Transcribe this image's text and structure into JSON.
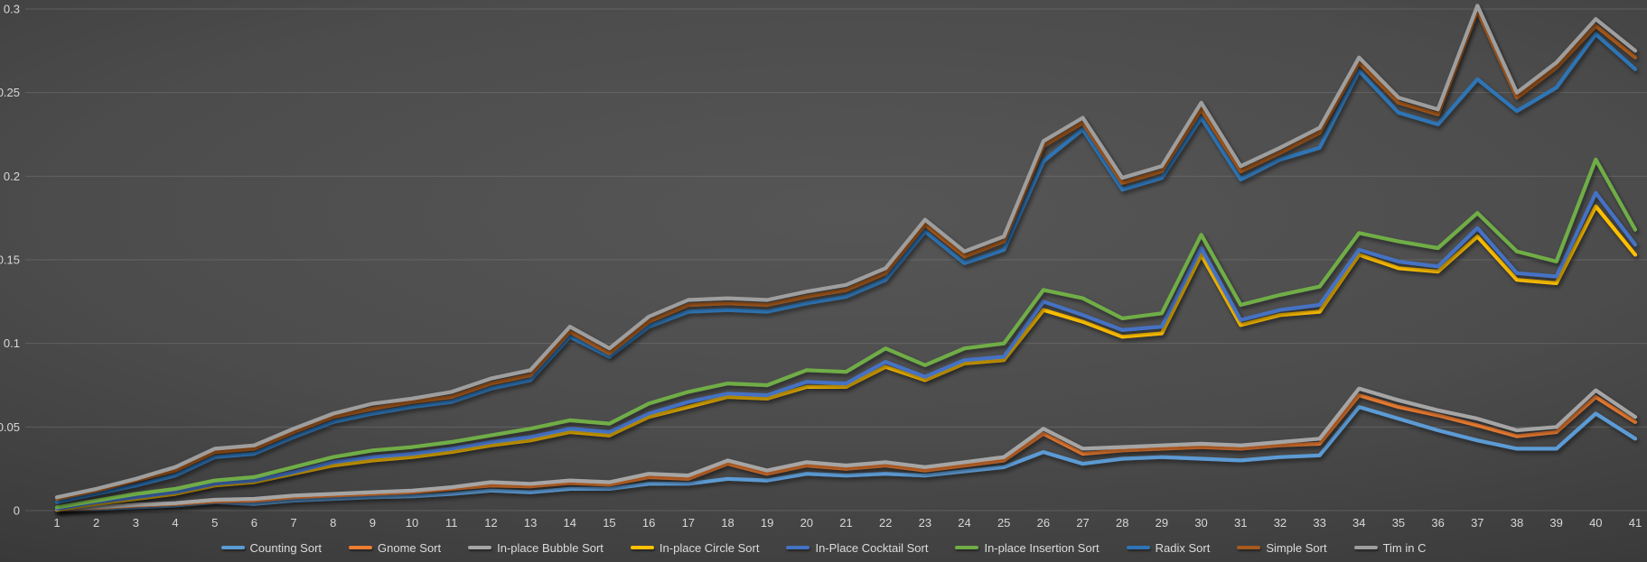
{
  "theme": {
    "background_center": "#565656",
    "background_edge": "#2d2d2d",
    "gridline_color": "#8a8a8a",
    "axis_text_color": "#d8d8d8",
    "legend_text_color": "#dcdcdc"
  },
  "chart_data": {
    "type": "line",
    "title": "",
    "xlabel": "",
    "ylabel": "",
    "grid": true,
    "legend_position": "bottom",
    "x": [
      1,
      2,
      3,
      4,
      5,
      6,
      7,
      8,
      9,
      10,
      11,
      12,
      13,
      14,
      15,
      16,
      17,
      18,
      19,
      20,
      21,
      22,
      23,
      24,
      25,
      26,
      27,
      28,
      29,
      30,
      31,
      32,
      33,
      34,
      35,
      36,
      37,
      38,
      39,
      40,
      41
    ],
    "y_axis": {
      "min": 0,
      "max": 0.3,
      "step": 0.05,
      "tick_labels": [
        "0",
        "0.05",
        "0.1",
        "0.15",
        "0.2",
        "0.25",
        "0.3"
      ]
    },
    "series": [
      {
        "name": "Counting Sort",
        "color": "#5B9BD5",
        "values": [
          0.0003,
          0.001,
          0.002,
          0.003,
          0.005,
          0.004,
          0.006,
          0.007,
          0.008,
          0.0085,
          0.01,
          0.012,
          0.011,
          0.013,
          0.013,
          0.016,
          0.016,
          0.019,
          0.018,
          0.022,
          0.021,
          0.022,
          0.021,
          0.0235,
          0.026,
          0.035,
          0.028,
          0.031,
          0.032,
          0.031,
          0.03,
          0.032,
          0.033,
          0.062,
          0.055,
          0.048,
          0.042,
          0.037,
          0.037,
          0.058,
          0.043
        ]
      },
      {
        "name": "Gnome Sort",
        "color": "#ED7D31",
        "values": [
          0.0005,
          0.0015,
          0.003,
          0.004,
          0.0055,
          0.006,
          0.008,
          0.009,
          0.01,
          0.011,
          0.013,
          0.015,
          0.0145,
          0.0165,
          0.0155,
          0.02,
          0.019,
          0.028,
          0.022,
          0.027,
          0.025,
          0.027,
          0.024,
          0.027,
          0.03,
          0.046,
          0.034,
          0.036,
          0.037,
          0.038,
          0.037,
          0.039,
          0.04,
          0.069,
          0.062,
          0.057,
          0.051,
          0.0445,
          0.047,
          0.068,
          0.053
        ]
      },
      {
        "name": "In-place Bubble Sort",
        "color": "#A5A5A5",
        "values": [
          0.0008,
          0.002,
          0.0035,
          0.0045,
          0.0065,
          0.007,
          0.009,
          0.01,
          0.011,
          0.012,
          0.014,
          0.017,
          0.016,
          0.018,
          0.017,
          0.022,
          0.021,
          0.03,
          0.024,
          0.029,
          0.027,
          0.029,
          0.026,
          0.029,
          0.032,
          0.049,
          0.037,
          0.038,
          0.039,
          0.04,
          0.039,
          0.041,
          0.043,
          0.073,
          0.066,
          0.06,
          0.055,
          0.048,
          0.05,
          0.072,
          0.056
        ]
      },
      {
        "name": "In-place Circle Sort",
        "color": "#FFC000",
        "values": [
          0.0005,
          0.004,
          0.007,
          0.01,
          0.015,
          0.017,
          0.022,
          0.027,
          0.03,
          0.032,
          0.035,
          0.039,
          0.042,
          0.047,
          0.045,
          0.056,
          0.062,
          0.068,
          0.067,
          0.074,
          0.074,
          0.086,
          0.078,
          0.088,
          0.09,
          0.12,
          0.113,
          0.104,
          0.106,
          0.153,
          0.111,
          0.117,
          0.119,
          0.153,
          0.145,
          0.143,
          0.164,
          0.138,
          0.136,
          0.182,
          0.153
        ]
      },
      {
        "name": "In-Place Cocktail Sort",
        "color": "#4472C4",
        "values": [
          0.001,
          0.005,
          0.008,
          0.011,
          0.016,
          0.018,
          0.023,
          0.029,
          0.032,
          0.034,
          0.037,
          0.041,
          0.044,
          0.049,
          0.047,
          0.058,
          0.065,
          0.07,
          0.069,
          0.077,
          0.076,
          0.089,
          0.08,
          0.09,
          0.092,
          0.125,
          0.117,
          0.108,
          0.11,
          0.157,
          0.114,
          0.12,
          0.123,
          0.156,
          0.149,
          0.146,
          0.169,
          0.142,
          0.14,
          0.19,
          0.159
        ]
      },
      {
        "name": "In-place Insertion Sort",
        "color": "#70AD47",
        "values": [
          0.002,
          0.006,
          0.01,
          0.013,
          0.018,
          0.02,
          0.026,
          0.032,
          0.036,
          0.038,
          0.041,
          0.045,
          0.049,
          0.054,
          0.052,
          0.064,
          0.071,
          0.076,
          0.075,
          0.084,
          0.083,
          0.097,
          0.087,
          0.097,
          0.1,
          0.132,
          0.127,
          0.115,
          0.118,
          0.165,
          0.123,
          0.129,
          0.134,
          0.166,
          0.161,
          0.157,
          0.178,
          0.155,
          0.149,
          0.21,
          0.168
        ]
      },
      {
        "name": "Radix Sort",
        "color": "#2E75B6",
        "values": [
          0.005,
          0.01,
          0.015,
          0.021,
          0.032,
          0.034,
          0.044,
          0.053,
          0.058,
          0.062,
          0.065,
          0.073,
          0.078,
          0.104,
          0.092,
          0.11,
          0.119,
          0.12,
          0.119,
          0.124,
          0.128,
          0.138,
          0.167,
          0.148,
          0.156,
          0.209,
          0.228,
          0.192,
          0.199,
          0.235,
          0.198,
          0.21,
          0.217,
          0.263,
          0.238,
          0.231,
          0.258,
          0.239,
          0.253,
          0.285,
          0.264
        ]
      },
      {
        "name": "Simple Sort",
        "color": "#A85A1C",
        "values": [
          0.007,
          0.012,
          0.018,
          0.024,
          0.035,
          0.037,
          0.047,
          0.056,
          0.061,
          0.065,
          0.068,
          0.076,
          0.081,
          0.107,
          0.094,
          0.113,
          0.123,
          0.124,
          0.123,
          0.128,
          0.132,
          0.142,
          0.171,
          0.152,
          0.161,
          0.218,
          0.232,
          0.196,
          0.203,
          0.24,
          0.203,
          0.214,
          0.226,
          0.268,
          0.244,
          0.237,
          0.299,
          0.247,
          0.265,
          0.29,
          0.271
        ]
      },
      {
        "name": "Tim in C",
        "color": "#9E9E9E",
        "values": [
          0.008,
          0.013,
          0.019,
          0.026,
          0.037,
          0.039,
          0.049,
          0.058,
          0.064,
          0.067,
          0.071,
          0.079,
          0.084,
          0.11,
          0.097,
          0.116,
          0.126,
          0.127,
          0.126,
          0.131,
          0.135,
          0.145,
          0.174,
          0.155,
          0.164,
          0.221,
          0.235,
          0.199,
          0.206,
          0.244,
          0.206,
          0.217,
          0.229,
          0.271,
          0.247,
          0.24,
          0.302,
          0.25,
          0.268,
          0.294,
          0.275
        ]
      }
    ]
  }
}
